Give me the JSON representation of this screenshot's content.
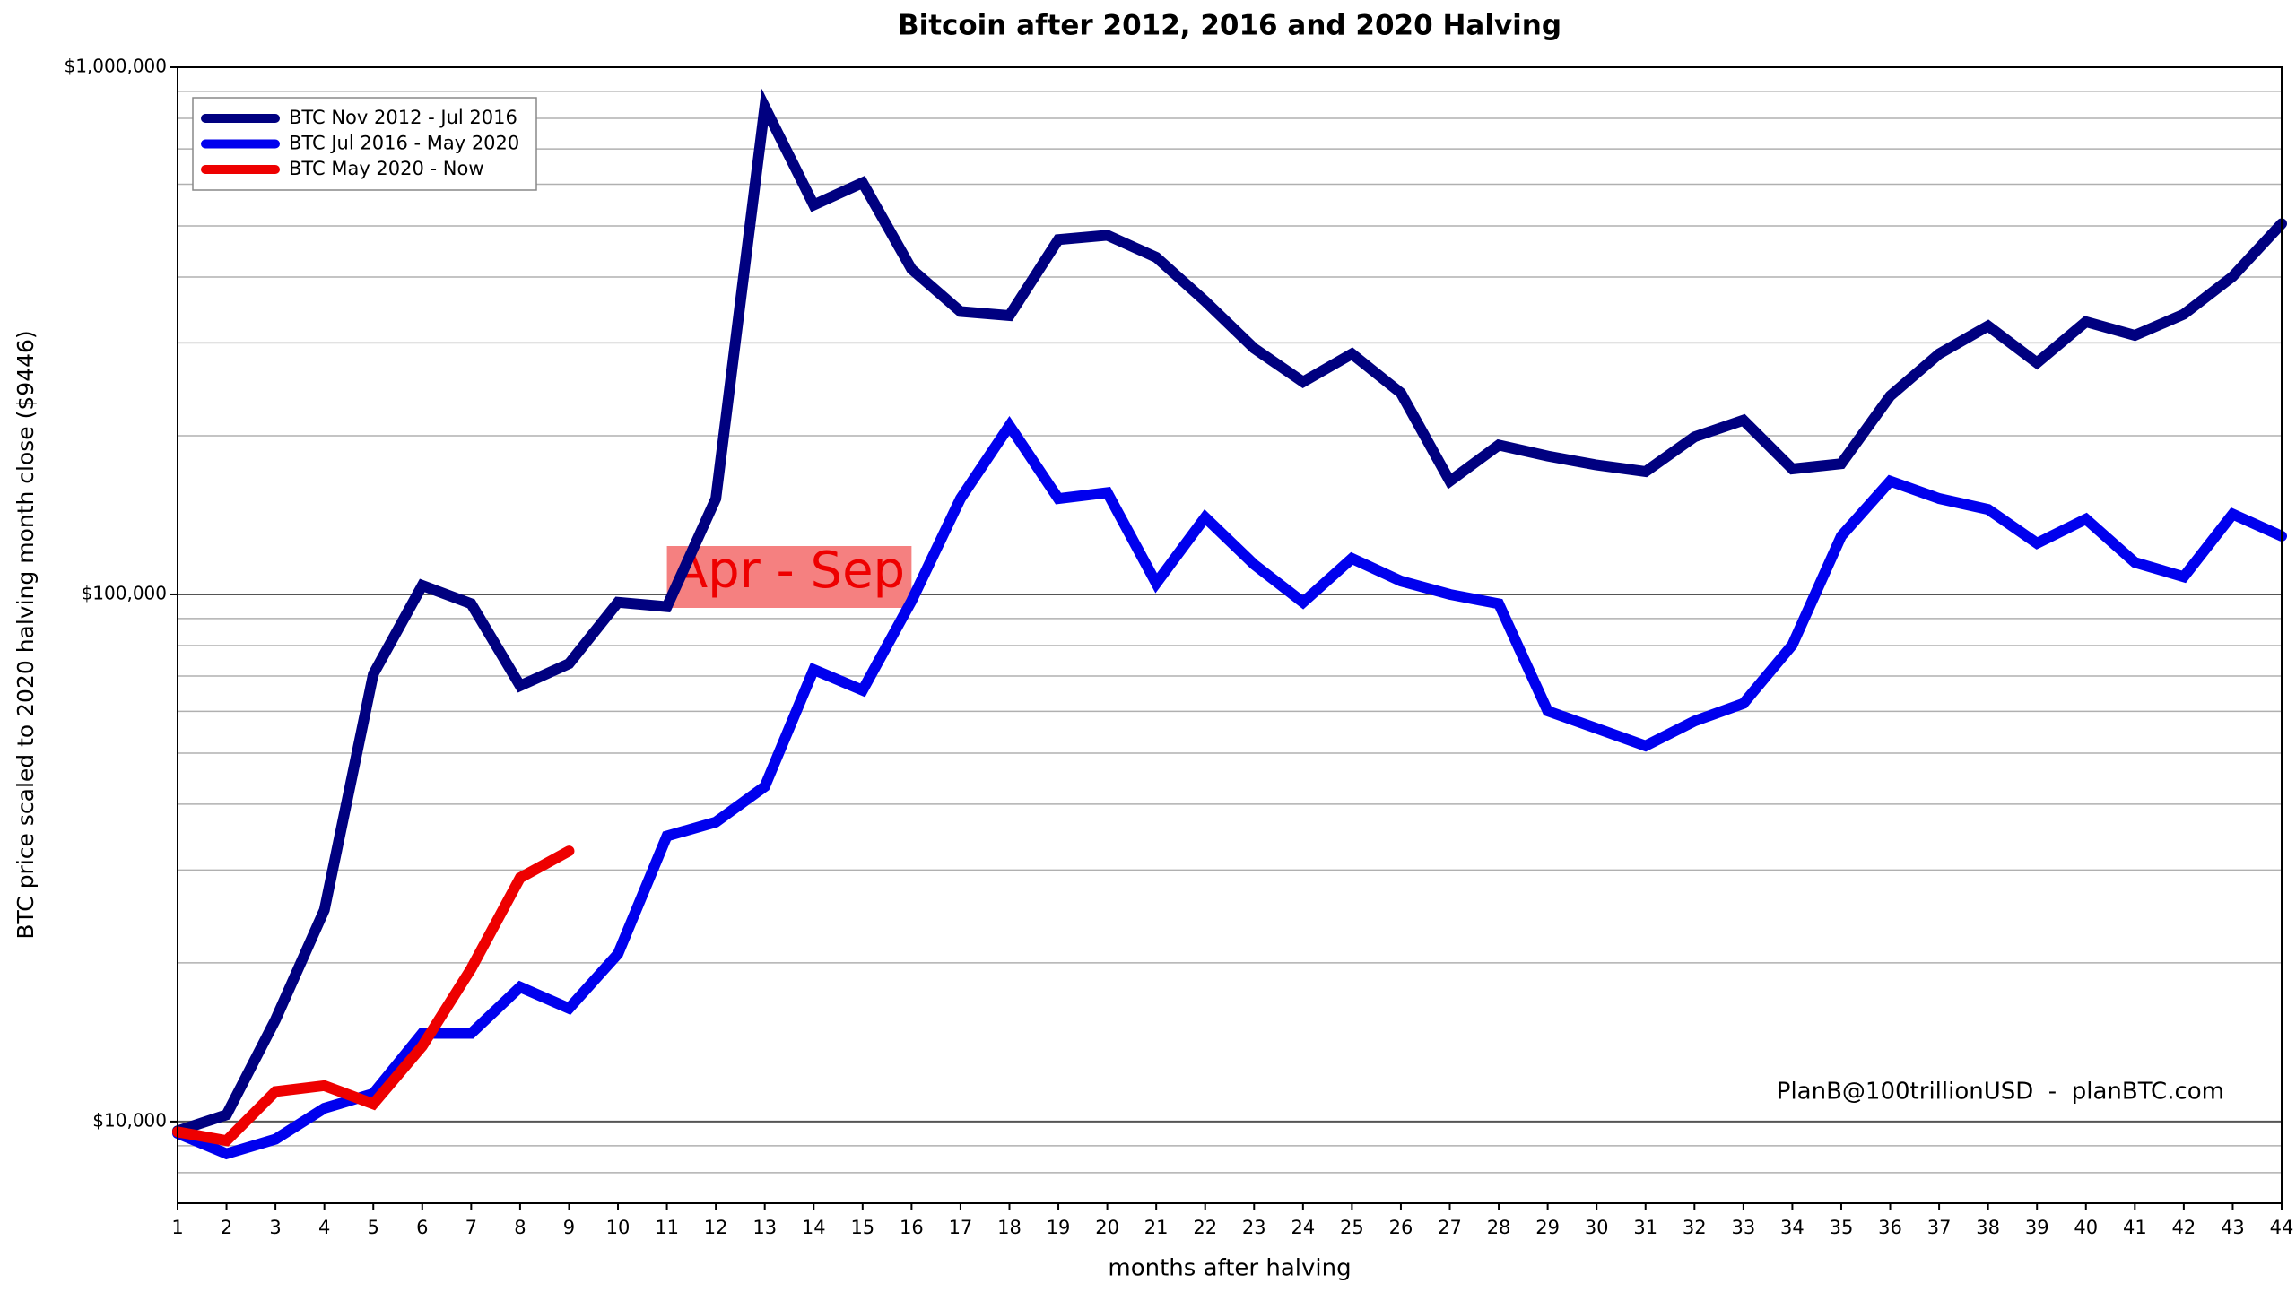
{
  "chart_data": {
    "type": "line",
    "title": "Bitcoin after 2012, 2016 and 2020 Halving",
    "x_label": "months after halving",
    "y_label": "BTC price scaled to 2020 halving month close ($9446)",
    "x": [
      1,
      2,
      3,
      4,
      5,
      6,
      7,
      8,
      9,
      10,
      11,
      12,
      13,
      14,
      15,
      16,
      17,
      18,
      19,
      20,
      21,
      22,
      23,
      24,
      25,
      26,
      27,
      28,
      29,
      30,
      31,
      32,
      33,
      34,
      35,
      36,
      37,
      38,
      39,
      40,
      41,
      42,
      43,
      44
    ],
    "xlim": [
      1,
      44
    ],
    "xticks": [
      1,
      2,
      3,
      4,
      5,
      6,
      7,
      8,
      9,
      10,
      11,
      12,
      13,
      14,
      15,
      16,
      17,
      18,
      19,
      20,
      21,
      22,
      23,
      24,
      25,
      26,
      27,
      28,
      29,
      30,
      31,
      32,
      33,
      34,
      35,
      36,
      37,
      38,
      39,
      40,
      41,
      42,
      43,
      44
    ],
    "ylim": [
      7000,
      1000000
    ],
    "log_scale": true,
    "yticks": [
      {
        "value": 10000,
        "label": "$10,000"
      },
      {
        "value": 100000,
        "label": "$100,000"
      },
      {
        "value": 1000000,
        "label": "$1,000,000"
      }
    ],
    "minor_gridlines": [
      8000,
      9000,
      20000,
      30000,
      40000,
      50000,
      60000,
      70000,
      80000,
      90000,
      200000,
      300000,
      400000,
      500000,
      600000,
      700000,
      800000,
      900000
    ],
    "grid": true,
    "legend": "top-left",
    "series": [
      {
        "name": "BTC Nov 2012 - Jul 2016",
        "color": "#000080",
        "values": [
          9600,
          10300,
          15600,
          25200,
          70600,
          104000,
          96000,
          67100,
          73900,
          96600,
          94800,
          152000,
          841000,
          548000,
          604000,
          414000,
          344000,
          338000,
          471000,
          480000,
          436000,
          360000,
          293000,
          253000,
          286000,
          241000,
          164000,
          192000,
          183000,
          176000,
          171000,
          199000,
          214000,
          173000,
          177000,
          238000,
          286000,
          323000,
          275000,
          329000,
          310000,
          340000,
          401000,
          505000
        ]
      },
      {
        "name": "BTC Jul 2016 - May 2020",
        "color": "#0000ee",
        "values": [
          9500,
          8690,
          9260,
          10600,
          11300,
          14700,
          14700,
          18000,
          16400,
          20800,
          34800,
          37000,
          43200,
          72000,
          65800,
          97200,
          152000,
          209000,
          152000,
          156000,
          105000,
          140000,
          114000,
          96600,
          117000,
          106000,
          100000,
          96000,
          60100,
          55700,
          51600,
          57500,
          62100,
          80200,
          129000,
          164000,
          152000,
          145000,
          125000,
          139000,
          115000,
          108000,
          142000,
          129000
        ]
      },
      {
        "name": "BTC May 2020 - Now",
        "color": "#ee0000",
        "values": [
          9560,
          9200,
          11400,
          11700,
          10800,
          13900,
          19500,
          29000,
          32600,
          null,
          null,
          null,
          null,
          null,
          null,
          null,
          null,
          null,
          null,
          null,
          null,
          null,
          null,
          null,
          null,
          null,
          null,
          null,
          null,
          null,
          null,
          null,
          null,
          null,
          null,
          null,
          null,
          null,
          null,
          null,
          null,
          null,
          null,
          null
        ]
      }
    ],
    "highlight": {
      "label": "Apr - Sep",
      "x_start": 11,
      "x_end": 16
    },
    "watermark": "PlanB@100trillionUSD  -  planBTC.com"
  }
}
